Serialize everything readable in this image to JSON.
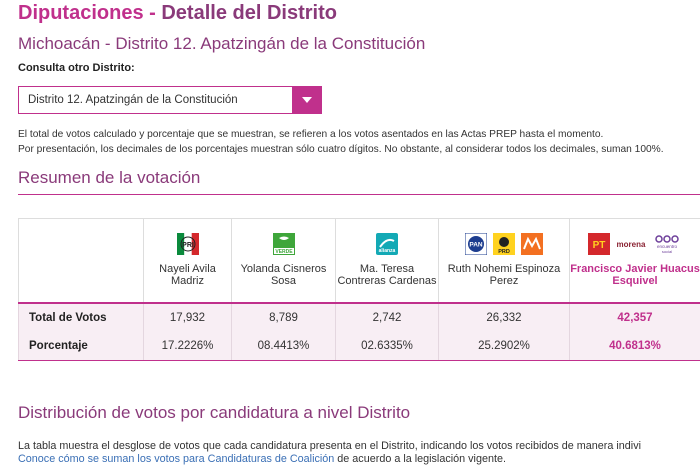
{
  "header": {
    "title_main": "Diputaciones",
    "title_sep": " - ",
    "title_detail": "Detalle del Distrito",
    "subtitle": "Michoacán - Distrito 12. Apatzingán de la Constitución"
  },
  "district_select": {
    "label": "Consulta otro Distrito:",
    "value": "Distrito 12. Apatzingán de la Constitución"
  },
  "info": {
    "line1": "El total de votos calculado y porcentaje que se muestran, se refieren a los votos asentados en las Actas PREP hasta el momento.",
    "line2": "Por presentación, los decimales de los porcentajes muestran sólo cuatro dígitos. No obstante, al considerar todos los decimales, suman 100%."
  },
  "resumen": {
    "title": "Resumen de la votación",
    "row_labels": {
      "total": "Total de Votos",
      "porcentaje": "Porcentaje"
    },
    "candidates": [
      {
        "name": "Nayeli Avila Madriz",
        "parties": [
          "PRI"
        ],
        "total": "17,932",
        "porcentaje": "17.2226%",
        "highlight": false
      },
      {
        "name": "Yolanda Cisneros Sosa",
        "parties": [
          "VERDE"
        ],
        "total": "8,789",
        "porcentaje": "08.4413%",
        "highlight": false
      },
      {
        "name": "Ma. Teresa Contreras Cardenas",
        "parties": [
          "alianza"
        ],
        "total": "2,742",
        "porcentaje": "02.6335%",
        "highlight": false
      },
      {
        "name": "Ruth Nohemi Espinoza Perez",
        "parties": [
          "PAN",
          "PRD",
          "MC"
        ],
        "total": "26,332",
        "porcentaje": "25.2902%",
        "highlight": false
      },
      {
        "name": "Francisco Javier Huacus Esquivel",
        "parties": [
          "PT",
          "morena",
          "encuentro social"
        ],
        "total": "42,357",
        "porcentaje": "40.6813%",
        "highlight": true
      }
    ]
  },
  "logo_text": {
    "pri": "PRI",
    "verde": "VERDE",
    "alianza": "alianza",
    "pan": "PAN",
    "prd": "PRD",
    "pt": "PT",
    "morena": "morena",
    "encuentro": "encuentro",
    "social": "social"
  },
  "distribucion": {
    "title": "Distribución de votos por candidatura a nivel Distrito",
    "description": "La tabla muestra el desglose de votos que cada candidatura presenta en el Distrito, indicando los votos recibidos de manera indivi",
    "link_text": "Conoce cómo se suman los votos para Candidaturas de Coalición",
    "link_suffix": " de acuerdo a la legislación vigente."
  },
  "colors": {
    "accent": "#c0308c",
    "heading": "#8a3a7a",
    "row_bg": "#f8eef4",
    "link": "#3a6fb5"
  }
}
